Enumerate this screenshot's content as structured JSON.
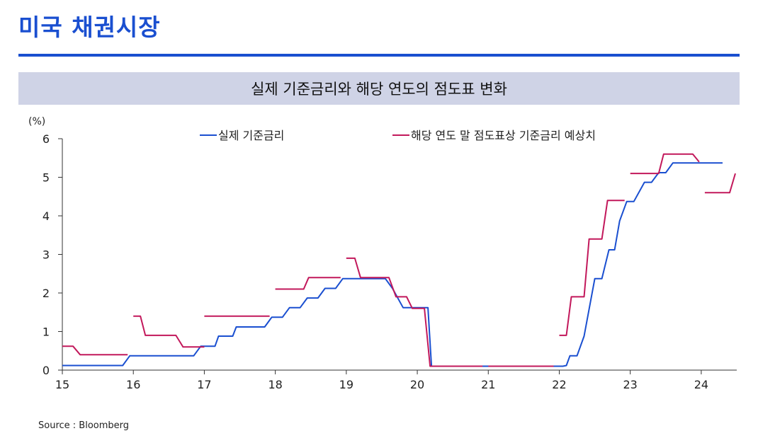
{
  "header": {
    "title": "미국 채권시장"
  },
  "chart_banner": {
    "title": "실제 기준금리와 해당 연도의 점도표 변화"
  },
  "source": "Source : Bloomberg",
  "colors": {
    "accent": "#1a4fd0",
    "banner_bg": "#cfd3e6",
    "actual_rate": "#1a4fd0",
    "dot_plot": "#c2185b"
  },
  "chart_data": {
    "type": "line",
    "title": "실제 기준금리와 해당 연도의 점도표 변화",
    "ylabel": "(%)",
    "xlabel": "",
    "xlim": [
      15,
      24.5
    ],
    "ylim": [
      0,
      6
    ],
    "x_ticks": [
      15,
      16,
      17,
      18,
      19,
      20,
      21,
      22,
      23,
      24
    ],
    "y_ticks": [
      0,
      1,
      2,
      3,
      4,
      5,
      6
    ],
    "legend_position": "top",
    "grid": false,
    "series": [
      {
        "name": "실제 기준금리",
        "color": "#1a4fd0",
        "segments": [
          [
            [
              15.0,
              0.12
            ],
            [
              15.85,
              0.12
            ],
            [
              15.95,
              0.37
            ],
            [
              16.85,
              0.37
            ],
            [
              16.95,
              0.62
            ],
            [
              17.15,
              0.62
            ],
            [
              17.2,
              0.88
            ],
            [
              17.4,
              0.88
            ],
            [
              17.45,
              1.12
            ],
            [
              17.85,
              1.12
            ],
            [
              17.95,
              1.37
            ],
            [
              18.1,
              1.37
            ],
            [
              18.2,
              1.62
            ],
            [
              18.35,
              1.62
            ],
            [
              18.45,
              1.87
            ],
            [
              18.6,
              1.87
            ],
            [
              18.7,
              2.12
            ],
            [
              18.85,
              2.12
            ],
            [
              18.95,
              2.37
            ],
            [
              19.55,
              2.37
            ],
            [
              19.65,
              2.12
            ],
            [
              19.8,
              1.62
            ],
            [
              20.15,
              1.62
            ],
            [
              20.2,
              0.1
            ],
            [
              21.1,
              0.1
            ],
            [
              22.05,
              0.1
            ],
            [
              22.1,
              0.12
            ],
            [
              22.15,
              0.37
            ],
            [
              22.25,
              0.37
            ],
            [
              22.35,
              0.88
            ],
            [
              22.5,
              2.37
            ],
            [
              22.6,
              2.37
            ],
            [
              22.7,
              3.12
            ],
            [
              22.78,
              3.12
            ],
            [
              22.85,
              3.87
            ],
            [
              22.95,
              4.37
            ],
            [
              23.05,
              4.37
            ],
            [
              23.2,
              4.87
            ],
            [
              23.3,
              4.87
            ],
            [
              23.4,
              5.12
            ],
            [
              23.5,
              5.12
            ],
            [
              23.6,
              5.37
            ],
            [
              24.3,
              5.37
            ]
          ]
        ]
      },
      {
        "name": "해당 연도 말 점도표상 기준금리 예상치",
        "color": "#c2185b",
        "segments": [
          [
            [
              15.0,
              0.62
            ],
            [
              15.15,
              0.62
            ],
            [
              15.25,
              0.4
            ],
            [
              15.92,
              0.4
            ]
          ],
          [
            [
              16.0,
              1.4
            ],
            [
              16.1,
              1.4
            ],
            [
              16.17,
              0.9
            ],
            [
              16.6,
              0.9
            ],
            [
              16.7,
              0.6
            ],
            [
              17.0,
              0.6
            ]
          ],
          [
            [
              17.0,
              1.4
            ],
            [
              17.92,
              1.4
            ]
          ],
          [
            [
              18.0,
              2.1
            ],
            [
              18.4,
              2.1
            ],
            [
              18.47,
              2.4
            ],
            [
              18.92,
              2.4
            ]
          ],
          [
            [
              19.0,
              2.9
            ],
            [
              19.12,
              2.9
            ],
            [
              19.2,
              2.4
            ],
            [
              19.6,
              2.4
            ],
            [
              19.7,
              1.9
            ],
            [
              19.85,
              1.9
            ],
            [
              19.93,
              1.6
            ],
            [
              20.1,
              1.6
            ],
            [
              20.18,
              0.1
            ],
            [
              20.92,
              0.1
            ]
          ],
          [
            [
              21.0,
              0.1
            ],
            [
              21.92,
              0.1
            ]
          ],
          [
            [
              22.0,
              0.9
            ],
            [
              22.1,
              0.9
            ],
            [
              22.17,
              1.9
            ],
            [
              22.35,
              1.9
            ],
            [
              22.42,
              3.4
            ],
            [
              22.6,
              3.4
            ],
            [
              22.68,
              4.4
            ],
            [
              22.92,
              4.4
            ]
          ],
          [
            [
              23.0,
              5.1
            ],
            [
              23.4,
              5.1
            ],
            [
              23.47,
              5.6
            ],
            [
              23.88,
              5.6
            ],
            [
              23.97,
              5.4
            ]
          ],
          [
            [
              24.05,
              4.6
            ],
            [
              24.4,
              4.6
            ],
            [
              24.48,
              5.1
            ]
          ]
        ]
      }
    ]
  }
}
